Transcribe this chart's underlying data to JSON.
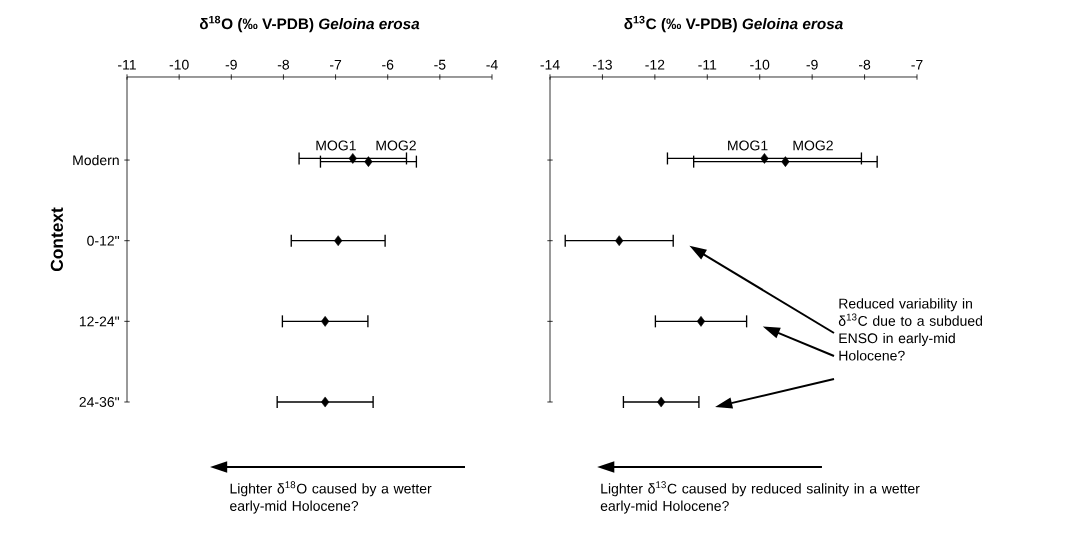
{
  "chart_data": [
    {
      "type": "scatter",
      "orientation": "horizontal",
      "title": "δ$^{18}$O (‰ V-PDB)  *Geloina erosa*",
      "ylabel": "Context",
      "categories": [
        "Modern",
        "0-12\"",
        "12-24\"",
        "24-36\""
      ],
      "xlim": [
        -11,
        -4
      ],
      "xticks": [
        -11,
        -10,
        -9,
        -8,
        -7,
        -6,
        -5,
        -4
      ],
      "marker": "diamond",
      "series": [
        {
          "name": "MOG1",
          "color": "#000000",
          "values": [
            -6.67,
            null,
            null,
            null
          ],
          "errors": [
            1.03,
            null,
            null,
            null
          ]
        },
        {
          "name": "MOG2",
          "color": "#000000",
          "values": [
            -6.37,
            null,
            null,
            null
          ],
          "errors": [
            0.92,
            null,
            null,
            null
          ]
        },
        {
          "color": "#000000",
          "values": [
            null,
            -6.95,
            -7.2,
            -7.2
          ],
          "errors": [
            null,
            0.9,
            0.82,
            0.92
          ]
        }
      ],
      "annotations": [
        "Lighter δ$^{18}$O caused by a wetter early-mid Holocene?"
      ]
    },
    {
      "type": "scatter",
      "orientation": "horizontal",
      "title": "δ$^{13}$C (‰ V-PDB)  *Geloina erosa*",
      "categories": [
        null,
        null,
        null,
        null
      ],
      "xlim": [
        -14,
        -7
      ],
      "xticks": [
        -14,
        -13,
        -12,
        -11,
        -10,
        -9,
        -8,
        -7
      ],
      "marker": "diamond",
      "tick_labels": "x",
      "series": [
        {
          "name": "MOG1",
          "color": "#000000",
          "values": [
            -9.91,
            null,
            null,
            null
          ],
          "errors": [
            1.85,
            null,
            null,
            null
          ]
        },
        {
          "name": "MOG2",
          "color": "#000000",
          "values": [
            -9.51,
            null,
            null,
            null
          ],
          "errors": [
            1.75,
            null,
            null,
            null
          ]
        },
        {
          "color": "#000000",
          "values": [
            null,
            -12.68,
            -11.12,
            -11.88
          ],
          "errors": [
            null,
            1.03,
            0.87,
            0.72
          ]
        }
      ],
      "annotations": [
        "Reduced variability in δ$^{13}$C due to a subdued ENSO in early-mid Holocene?",
        "Lighter δ$^{13}$C caused by reduced salinity in a wetter early-mid Holocene?"
      ]
    }
  ]
}
